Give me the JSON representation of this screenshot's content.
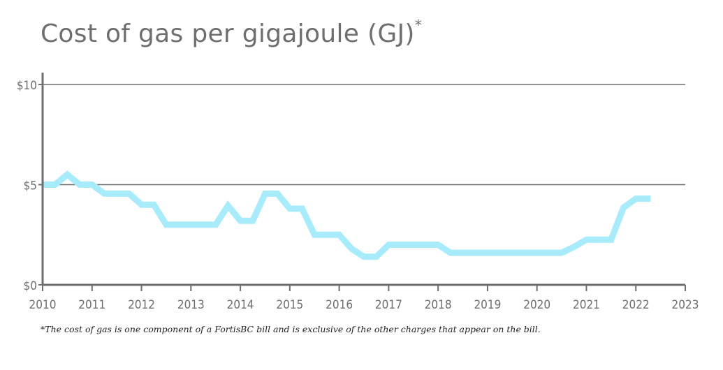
{
  "chart_data": {
    "type": "line",
    "title": "Cost of gas per gigajoule (GJ)",
    "title_marker": "*",
    "xlabel": "",
    "ylabel": "",
    "xlim": [
      2010,
      2023
    ],
    "ylim": [
      0,
      10
    ],
    "x_ticks": [
      2010,
      2011,
      2012,
      2013,
      2014,
      2015,
      2016,
      2017,
      2018,
      2019,
      2020,
      2021,
      2022,
      2023
    ],
    "y_ticks": [
      {
        "value": 0,
        "label": "$0"
      },
      {
        "value": 5,
        "label": "$5"
      },
      {
        "value": 10,
        "label": "$10"
      }
    ],
    "grid": "horizontal at $5 and $10",
    "series": [
      {
        "color": "#a8ecfc",
        "points": [
          [
            2010.0,
            5.0
          ],
          [
            2010.25,
            5.0
          ],
          [
            2010.5,
            5.5
          ],
          [
            2010.75,
            5.0
          ],
          [
            2011.0,
            5.0
          ],
          [
            2011.25,
            4.55
          ],
          [
            2011.75,
            4.55
          ],
          [
            2012.0,
            4.0
          ],
          [
            2012.25,
            4.0
          ],
          [
            2012.5,
            3.0
          ],
          [
            2013.0,
            3.0
          ],
          [
            2013.5,
            3.0
          ],
          [
            2013.75,
            3.95
          ],
          [
            2014.0,
            3.2
          ],
          [
            2014.25,
            3.2
          ],
          [
            2014.5,
            4.55
          ],
          [
            2014.75,
            4.55
          ],
          [
            2015.0,
            3.8
          ],
          [
            2015.25,
            3.8
          ],
          [
            2015.5,
            2.5
          ],
          [
            2016.0,
            2.5
          ],
          [
            2016.25,
            1.8
          ],
          [
            2016.5,
            1.4
          ],
          [
            2016.75,
            1.4
          ],
          [
            2017.0,
            2.0
          ],
          [
            2017.5,
            2.0
          ],
          [
            2018.0,
            2.0
          ],
          [
            2018.25,
            1.6
          ],
          [
            2018.5,
            1.6
          ],
          [
            2019.0,
            1.6
          ],
          [
            2019.5,
            1.6
          ],
          [
            2020.0,
            1.6
          ],
          [
            2020.5,
            1.6
          ],
          [
            2020.75,
            1.9
          ],
          [
            2021.0,
            2.25
          ],
          [
            2021.25,
            2.25
          ],
          [
            2021.5,
            2.25
          ],
          [
            2021.75,
            3.85
          ],
          [
            2022.0,
            4.3
          ],
          [
            2022.3,
            4.3
          ]
        ]
      }
    ],
    "footnote": "*The cost of gas is one component of a FortisBC bill and is exclusive of the other charges that appear on the bill.",
    "colors": {
      "axis": "#6d6e70",
      "text": "#6d6e70",
      "line": "#a8ecfc"
    }
  }
}
